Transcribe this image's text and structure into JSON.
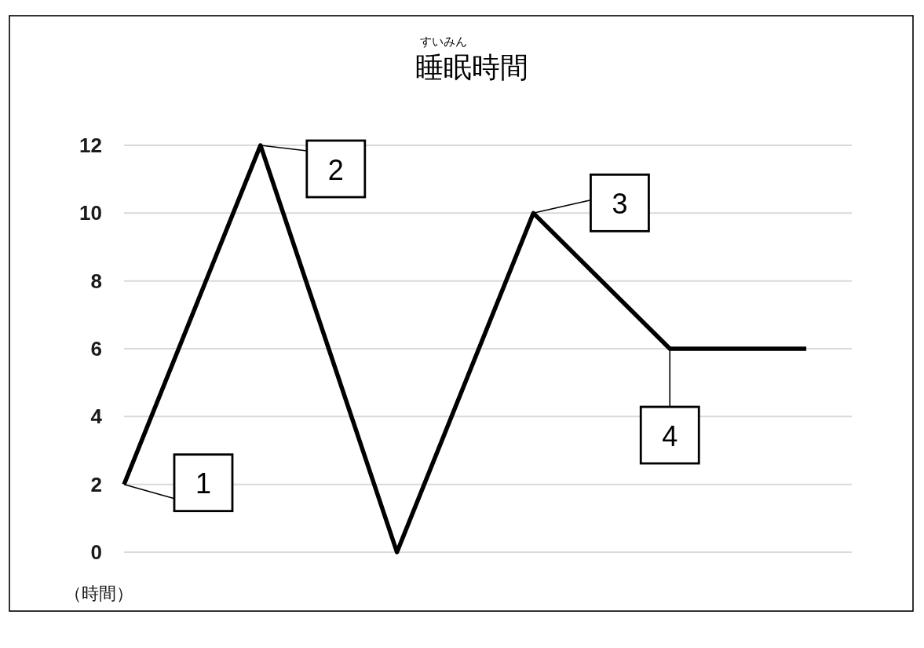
{
  "chart_data": {
    "type": "line",
    "title": "睡眠時間",
    "subtitle": "すいみん",
    "ylabel": "（時間）",
    "categories": [
      null,
      null,
      null,
      null,
      null,
      null
    ],
    "series": [
      {
        "color": "#000000",
        "values": [
          2,
          12,
          0,
          10,
          6,
          6
        ]
      }
    ],
    "ylim": [
      0,
      12
    ],
    "yticks": [
      0,
      2,
      4,
      6,
      8,
      10,
      12
    ],
    "grid": "y",
    "tick_labels": "y",
    "line_style": "solid",
    "annotations": [
      "1",
      "2",
      "3",
      "4"
    ]
  }
}
